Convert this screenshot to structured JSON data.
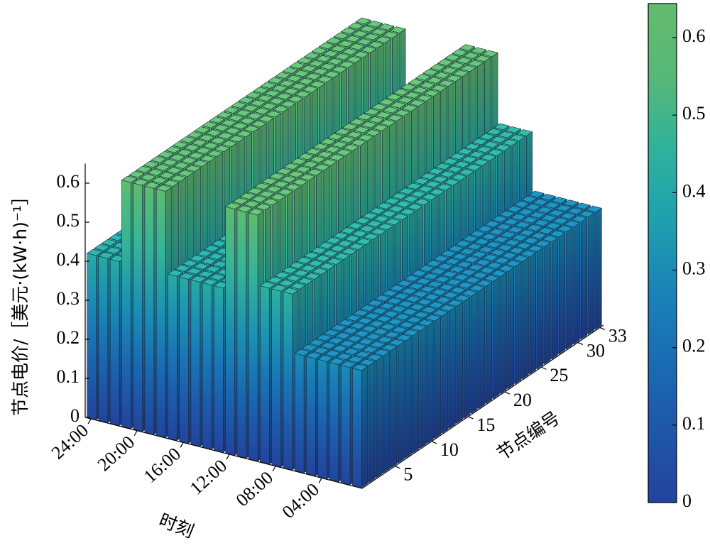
{
  "chart_data": {
    "type": "bar3d",
    "zlabel": "节点电价/［美元·(kW·h)⁻¹］",
    "xlabel": "时刻",
    "ylabel": "节点编号",
    "x": [
      1,
      2,
      3,
      4,
      5,
      6,
      7,
      8,
      9,
      10,
      11,
      12,
      13,
      14,
      15,
      16,
      17,
      18,
      19,
      20,
      21,
      22,
      23,
      24
    ],
    "nodes": [
      1,
      2,
      3,
      4,
      5,
      6,
      7,
      8,
      9,
      10,
      11,
      12,
      13,
      14,
      15,
      16,
      17,
      18,
      19,
      20,
      21,
      22,
      23,
      24,
      25,
      26,
      27,
      28,
      29,
      30,
      31,
      32,
      33
    ],
    "xticks": [
      {
        "value": 24,
        "label": "24:00"
      },
      {
        "value": 20,
        "label": "20:00"
      },
      {
        "value": 16,
        "label": "16:00"
      },
      {
        "value": 12,
        "label": "12:00"
      },
      {
        "value": 8,
        "label": "08:00"
      },
      {
        "value": 4,
        "label": "04:00"
      }
    ],
    "yticks": [
      5,
      10,
      15,
      20,
      25,
      30,
      33
    ],
    "zlim": [
      0,
      0.65
    ],
    "zticks": [
      0,
      0.1,
      0.2,
      0.3,
      0.4,
      0.5,
      0.6
    ],
    "clim": [
      0,
      0.644
    ],
    "cticks": [
      0,
      0.1,
      0.2,
      0.3,
      0.4,
      0.5,
      0.6
    ],
    "colormap": [
      "#22449c",
      "#1f56a8",
      "#1a6cb3",
      "#1a84b8",
      "#1fa1ad",
      "#2fb39c",
      "#58b875",
      "#62bb6e"
    ],
    "values": [
      [
        0.3,
        0.3,
        0.3,
        0.3,
        0.3,
        0.3,
        0.3,
        0.3,
        0.3,
        0.3,
        0.3,
        0.3,
        0.3,
        0.3,
        0.3,
        0.3,
        0.3,
        0.3,
        0.3,
        0.3,
        0.3,
        0.3,
        0.3,
        0.3,
        0.3,
        0.3,
        0.3,
        0.3,
        0.3,
        0.3,
        0.3,
        0.3,
        0.3
      ],
      [
        0.3,
        0.3,
        0.3,
        0.3,
        0.3,
        0.3,
        0.3,
        0.3,
        0.3,
        0.3,
        0.3,
        0.3,
        0.3,
        0.3,
        0.3,
        0.3,
        0.3,
        0.3,
        0.3,
        0.3,
        0.3,
        0.3,
        0.3,
        0.3,
        0.3,
        0.3,
        0.3,
        0.3,
        0.3,
        0.3,
        0.3,
        0.3,
        0.3
      ],
      [
        0.3,
        0.3,
        0.3,
        0.3,
        0.3,
        0.3,
        0.3,
        0.3,
        0.3,
        0.3,
        0.3,
        0.3,
        0.3,
        0.3,
        0.3,
        0.3,
        0.3,
        0.3,
        0.3,
        0.3,
        0.3,
        0.3,
        0.3,
        0.3,
        0.3,
        0.3,
        0.3,
        0.3,
        0.3,
        0.3,
        0.3,
        0.3,
        0.3
      ],
      [
        0.3,
        0.3,
        0.3,
        0.3,
        0.3,
        0.3,
        0.3,
        0.3,
        0.3,
        0.3,
        0.3,
        0.3,
        0.3,
        0.3,
        0.3,
        0.3,
        0.3,
        0.3,
        0.3,
        0.3,
        0.3,
        0.3,
        0.3,
        0.3,
        0.3,
        0.3,
        0.3,
        0.3,
        0.3,
        0.3,
        0.3,
        0.3,
        0.3
      ],
      [
        0.3,
        0.3,
        0.3,
        0.3,
        0.3,
        0.3,
        0.3,
        0.3,
        0.3,
        0.3,
        0.3,
        0.3,
        0.3,
        0.3,
        0.3,
        0.3,
        0.3,
        0.3,
        0.3,
        0.3,
        0.3,
        0.3,
        0.3,
        0.3,
        0.3,
        0.3,
        0.3,
        0.3,
        0.3,
        0.3,
        0.3,
        0.3,
        0.3
      ],
      [
        0.3,
        0.3,
        0.3,
        0.3,
        0.3,
        0.3,
        0.3,
        0.3,
        0.3,
        0.3,
        0.3,
        0.3,
        0.3,
        0.3,
        0.3,
        0.3,
        0.3,
        0.3,
        0.3,
        0.3,
        0.3,
        0.3,
        0.3,
        0.3,
        0.3,
        0.3,
        0.3,
        0.3,
        0.3,
        0.3,
        0.3,
        0.3,
        0.3
      ],
      [
        0.45,
        0.45,
        0.45,
        0.45,
        0.45,
        0.45,
        0.45,
        0.45,
        0.45,
        0.45,
        0.45,
        0.45,
        0.45,
        0.45,
        0.45,
        0.45,
        0.45,
        0.45,
        0.45,
        0.45,
        0.45,
        0.45,
        0.45,
        0.45,
        0.45,
        0.45,
        0.45,
        0.45,
        0.45,
        0.45,
        0.45,
        0.45,
        0.45
      ],
      [
        0.45,
        0.45,
        0.45,
        0.45,
        0.45,
        0.45,
        0.45,
        0.45,
        0.45,
        0.45,
        0.45,
        0.45,
        0.45,
        0.45,
        0.45,
        0.45,
        0.45,
        0.45,
        0.45,
        0.45,
        0.45,
        0.45,
        0.45,
        0.45,
        0.45,
        0.45,
        0.45,
        0.45,
        0.45,
        0.45,
        0.45,
        0.45,
        0.45
      ],
      [
        0.45,
        0.45,
        0.45,
        0.45,
        0.45,
        0.45,
        0.45,
        0.45,
        0.45,
        0.45,
        0.45,
        0.45,
        0.45,
        0.45,
        0.45,
        0.45,
        0.45,
        0.45,
        0.45,
        0.45,
        0.45,
        0.45,
        0.45,
        0.45,
        0.45,
        0.45,
        0.45,
        0.45,
        0.45,
        0.45,
        0.45,
        0.45,
        0.45
      ],
      [
        0.63,
        0.63,
        0.63,
        0.63,
        0.63,
        0.63,
        0.63,
        0.63,
        0.63,
        0.63,
        0.63,
        0.63,
        0.63,
        0.63,
        0.63,
        0.63,
        0.63,
        0.63,
        0.63,
        0.63,
        0.63,
        0.63,
        0.63,
        0.63,
        0.63,
        0.63,
        0.63,
        0.63,
        0.63,
        0.63,
        0.63,
        0.63,
        0.63
      ],
      [
        0.63,
        0.63,
        0.63,
        0.63,
        0.63,
        0.63,
        0.63,
        0.63,
        0.63,
        0.63,
        0.63,
        0.63,
        0.63,
        0.63,
        0.63,
        0.63,
        0.63,
        0.63,
        0.63,
        0.63,
        0.63,
        0.63,
        0.63,
        0.63,
        0.63,
        0.63,
        0.63,
        0.63,
        0.63,
        0.63,
        0.63,
        0.63,
        0.63
      ],
      [
        0.63,
        0.63,
        0.63,
        0.63,
        0.63,
        0.63,
        0.63,
        0.63,
        0.63,
        0.63,
        0.63,
        0.63,
        0.63,
        0.63,
        0.63,
        0.63,
        0.63,
        0.63,
        0.63,
        0.63,
        0.63,
        0.63,
        0.63,
        0.63,
        0.63,
        0.63,
        0.63,
        0.63,
        0.63,
        0.63,
        0.63,
        0.63,
        0.63
      ],
      [
        0.42,
        0.42,
        0.42,
        0.42,
        0.42,
        0.42,
        0.42,
        0.42,
        0.42,
        0.42,
        0.42,
        0.42,
        0.42,
        0.42,
        0.42,
        0.42,
        0.42,
        0.42,
        0.42,
        0.42,
        0.42,
        0.42,
        0.42,
        0.42,
        0.42,
        0.42,
        0.42,
        0.42,
        0.42,
        0.42,
        0.42,
        0.42,
        0.42
      ],
      [
        0.42,
        0.42,
        0.42,
        0.42,
        0.42,
        0.42,
        0.42,
        0.42,
        0.42,
        0.42,
        0.42,
        0.42,
        0.42,
        0.42,
        0.42,
        0.42,
        0.42,
        0.42,
        0.42,
        0.42,
        0.42,
        0.42,
        0.42,
        0.42,
        0.42,
        0.42,
        0.42,
        0.42,
        0.42,
        0.42,
        0.42,
        0.42,
        0.42
      ],
      [
        0.42,
        0.42,
        0.42,
        0.42,
        0.42,
        0.42,
        0.42,
        0.42,
        0.42,
        0.42,
        0.42,
        0.42,
        0.42,
        0.42,
        0.42,
        0.42,
        0.42,
        0.42,
        0.42,
        0.42,
        0.42,
        0.42,
        0.42,
        0.42,
        0.42,
        0.42,
        0.42,
        0.42,
        0.42,
        0.42,
        0.42,
        0.42,
        0.42
      ],
      [
        0.42,
        0.42,
        0.42,
        0.42,
        0.42,
        0.42,
        0.42,
        0.42,
        0.42,
        0.42,
        0.42,
        0.42,
        0.42,
        0.42,
        0.42,
        0.42,
        0.42,
        0.42,
        0.42,
        0.42,
        0.42,
        0.42,
        0.42,
        0.42,
        0.42,
        0.42,
        0.42,
        0.42,
        0.42,
        0.42,
        0.42,
        0.42,
        0.42
      ],
      [
        0.42,
        0.42,
        0.42,
        0.42,
        0.42,
        0.42,
        0.42,
        0.42,
        0.42,
        0.42,
        0.42,
        0.42,
        0.42,
        0.42,
        0.42,
        0.42,
        0.42,
        0.42,
        0.42,
        0.42,
        0.42,
        0.42,
        0.42,
        0.42,
        0.42,
        0.42,
        0.42,
        0.42,
        0.42,
        0.42,
        0.42,
        0.42,
        0.42
      ],
      [
        0.63,
        0.63,
        0.63,
        0.63,
        0.63,
        0.63,
        0.63,
        0.63,
        0.63,
        0.63,
        0.63,
        0.63,
        0.63,
        0.63,
        0.63,
        0.63,
        0.63,
        0.63,
        0.63,
        0.63,
        0.63,
        0.63,
        0.63,
        0.63,
        0.63,
        0.63,
        0.63,
        0.63,
        0.63,
        0.63,
        0.63,
        0.63,
        0.63
      ],
      [
        0.63,
        0.63,
        0.63,
        0.63,
        0.63,
        0.63,
        0.63,
        0.63,
        0.63,
        0.63,
        0.63,
        0.63,
        0.63,
        0.63,
        0.63,
        0.63,
        0.63,
        0.63,
        0.63,
        0.63,
        0.63,
        0.63,
        0.63,
        0.63,
        0.63,
        0.63,
        0.63,
        0.63,
        0.63,
        0.63,
        0.63,
        0.63,
        0.63
      ],
      [
        0.63,
        0.63,
        0.63,
        0.63,
        0.63,
        0.63,
        0.63,
        0.63,
        0.63,
        0.63,
        0.63,
        0.63,
        0.63,
        0.63,
        0.63,
        0.63,
        0.63,
        0.63,
        0.63,
        0.63,
        0.63,
        0.63,
        0.63,
        0.63,
        0.63,
        0.63,
        0.63,
        0.63,
        0.63,
        0.63,
        0.63,
        0.63,
        0.63
      ],
      [
        0.63,
        0.63,
        0.63,
        0.63,
        0.63,
        0.63,
        0.63,
        0.63,
        0.63,
        0.63,
        0.63,
        0.63,
        0.63,
        0.63,
        0.63,
        0.63,
        0.63,
        0.63,
        0.63,
        0.63,
        0.63,
        0.63,
        0.63,
        0.63,
        0.63,
        0.63,
        0.63,
        0.63,
        0.63,
        0.63,
        0.63,
        0.63,
        0.63
      ],
      [
        0.42,
        0.42,
        0.42,
        0.42,
        0.42,
        0.42,
        0.42,
        0.42,
        0.42,
        0.42,
        0.42,
        0.42,
        0.42,
        0.42,
        0.42,
        0.42,
        0.42,
        0.42,
        0.42,
        0.42,
        0.42,
        0.42,
        0.42,
        0.42,
        0.42,
        0.42,
        0.42,
        0.42,
        0.42,
        0.42,
        0.42,
        0.42,
        0.42
      ],
      [
        0.42,
        0.42,
        0.42,
        0.42,
        0.42,
        0.42,
        0.42,
        0.42,
        0.42,
        0.42,
        0.42,
        0.42,
        0.42,
        0.42,
        0.42,
        0.42,
        0.42,
        0.42,
        0.42,
        0.42,
        0.42,
        0.42,
        0.42,
        0.42,
        0.42,
        0.42,
        0.42,
        0.42,
        0.42,
        0.42,
        0.42,
        0.42,
        0.42
      ],
      [
        0.42,
        0.42,
        0.42,
        0.42,
        0.42,
        0.42,
        0.42,
        0.42,
        0.42,
        0.42,
        0.42,
        0.42,
        0.42,
        0.42,
        0.42,
        0.42,
        0.42,
        0.42,
        0.42,
        0.42,
        0.42,
        0.42,
        0.42,
        0.42,
        0.42,
        0.42,
        0.42,
        0.42,
        0.42,
        0.42,
        0.42,
        0.42,
        0.42
      ]
    ]
  }
}
